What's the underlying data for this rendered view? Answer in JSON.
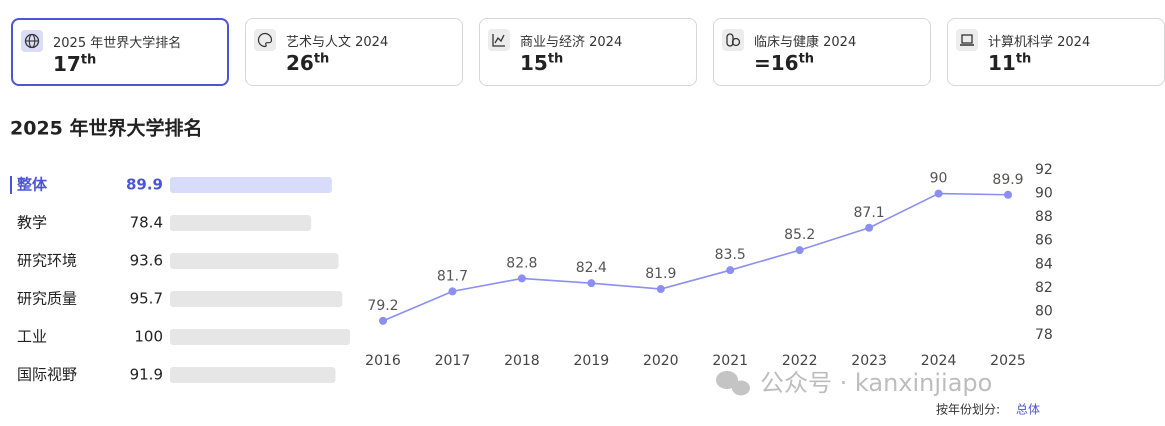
{
  "tabs": [
    {
      "label": "2025 年世界大学排名",
      "rank": "17",
      "suffix": "th",
      "icon": "globe"
    },
    {
      "label": "艺术与人文 2024",
      "rank": "26",
      "suffix": "th",
      "icon": "palette"
    },
    {
      "label": "商业与经济 2024",
      "rank": "15",
      "suffix": "th",
      "icon": "chart"
    },
    {
      "label": "临床与健康 2024",
      "rank": "=16",
      "suffix": "th",
      "icon": "health"
    },
    {
      "label": "计算机科学 2024",
      "rank": "11",
      "suffix": "th",
      "icon": "laptop"
    }
  ],
  "section_title": "2025 年世界大学排名",
  "chart_data": [
    {
      "type": "hbar",
      "categories": [
        "整体",
        "教学",
        "研究环境",
        "研究质量",
        "工业",
        "国际视野"
      ],
      "values": [
        89.9,
        78.4,
        93.6,
        95.7,
        100,
        91.9
      ],
      "xlim": [
        0,
        100
      ],
      "colors": [
        "#d9dbfb",
        "#e6e6e6",
        "#e6e6e6",
        "#e6e6e6",
        "#e6e6e6",
        "#e6e6e6"
      ]
    },
    {
      "type": "line",
      "categories": [
        "2016",
        "2017",
        "2018",
        "2019",
        "2020",
        "2021",
        "2022",
        "2023",
        "2024",
        "2025"
      ],
      "values": [
        79.2,
        81.7,
        82.8,
        82.4,
        81.9,
        83.5,
        85.2,
        87.1,
        90,
        89.9
      ],
      "color": "#8a8ff2",
      "ylim": [
        78,
        92
      ],
      "yticks": [
        78,
        80,
        82,
        84,
        86,
        88,
        90,
        92
      ]
    }
  ],
  "watermark": "公众号 · kanxinjiapo",
  "footer": {
    "label": "按年份划分:",
    "link": "总体"
  }
}
